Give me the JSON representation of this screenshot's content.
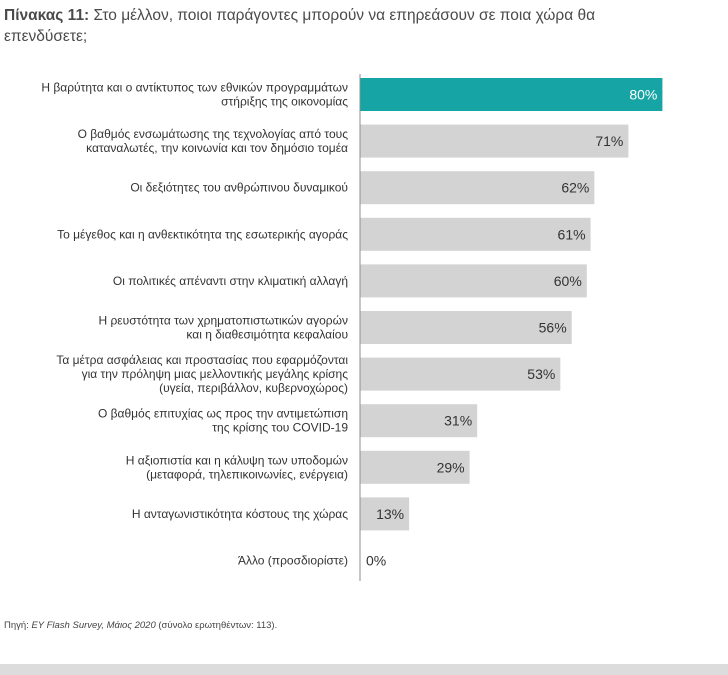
{
  "title": {
    "prefix": "Πίνακας 11:",
    "text": "Στο μέλλον, ποιοι παράγοντες μπορούν να επηρεάσουν σε ποια χώρα θα επενδύσετε;"
  },
  "source": {
    "lead": "Πηγή: ",
    "italic": "EY Flash Survey, Μάιος 2020",
    "rest": " (σύνολο ερωτηθέντων: 113)."
  },
  "colors": {
    "highlight": "#16a4a4",
    "bar": "#d3d3d3",
    "axis": "#8c8c8c",
    "label_text": "#333333",
    "value_text": "#333333",
    "highlight_value_text": "#ffffff"
  },
  "chart_data": {
    "type": "bar",
    "orientation": "horizontal",
    "title": "Πίνακας 11: Στο μέλλον, ποιοι παράγοντες μπορούν να επηρεάσουν σε ποια χώρα θα επενδύσετε;",
    "xlim": [
      0,
      100
    ],
    "unit": "%",
    "grid": false,
    "categories": [
      [
        "Η βαρύτητα και ο αντίκτυπος των εθνικών προγραμμάτων",
        "στήριξης της οικονομίας"
      ],
      [
        "Ο βαθμός ενσωμάτωσης της τεχνολογίας από τους",
        "καταναλωτές, την κοινωνία και τον δημόσιο τομέα"
      ],
      [
        "Οι δεξιότητες του ανθρώπινου δυναμικού"
      ],
      [
        "Το μέγεθος και η ανθεκτικότητα της εσωτερικής αγοράς"
      ],
      [
        "Οι πολιτικές απέναντι στην κλιματική αλλαγή"
      ],
      [
        "Η ρευστότητα των χρηματοπιστωτικών αγορών",
        "και η διαθεσιμότητα κεφαλαίου"
      ],
      [
        "Τα μέτρα ασφάλειας και προστασίας που εφαρμόζονται",
        "για την πρόληψη μιας μελλοντικής μεγάλης κρίσης",
        "(υγεία, περιβάλλον, κυβερνοχώρος)"
      ],
      [
        "Ο βαθμός επιτυχίας ως προς την αντιμετώπιση",
        "της κρίσης του COVID-19"
      ],
      [
        "Η αξιοπιστία και η κάλυψη των υποδομών",
        "(μεταφορά, τηλεπικοινωνίες, ενέργεια)"
      ],
      [
        "Η ανταγωνιστικότητα κόστους της χώρας"
      ],
      [
        "Άλλο (προσδιορίστε)"
      ]
    ],
    "values": [
      80,
      71,
      62,
      61,
      60,
      56,
      53,
      31,
      29,
      13,
      0
    ],
    "value_labels": [
      "80%",
      "71%",
      "62%",
      "61%",
      "60%",
      "56%",
      "53%",
      "31%",
      "29%",
      "13%",
      "0%"
    ],
    "highlight_index": 0
  }
}
